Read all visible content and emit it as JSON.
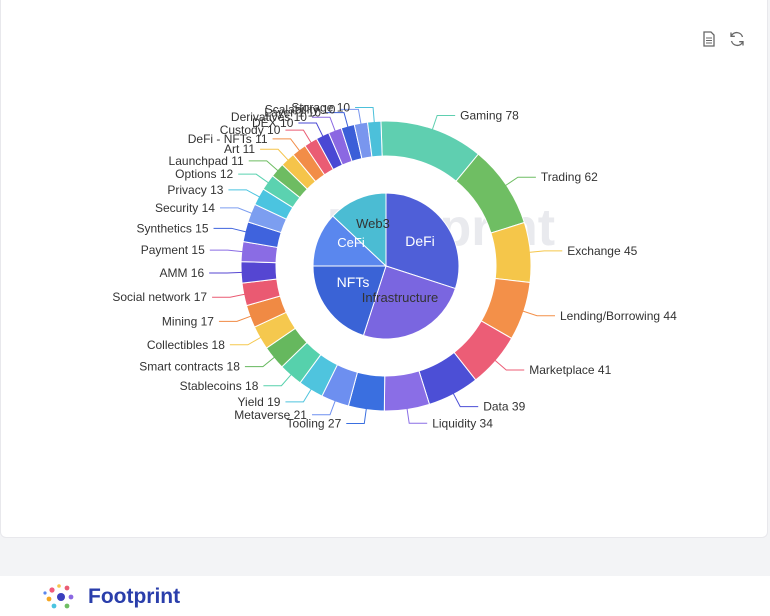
{
  "toolbar": {
    "data_view_icon": "document-icon",
    "refresh_icon": "refresh-icon"
  },
  "brand": {
    "name": "Footprint",
    "logo_icon": "footprint-logo-icon"
  },
  "chart_data": {
    "type": "pie",
    "variant": "nested donut",
    "watermark": "Footprint",
    "inner": [
      {
        "name": "DeFi",
        "value": 30,
        "color": "#4f5fd8"
      },
      {
        "name": "Infrastructure",
        "value": 25,
        "color": "#7a66e0"
      },
      {
        "name": "NFTs",
        "value": 20,
        "color": "#3a63d6"
      },
      {
        "name": "CeFi",
        "value": 12,
        "color": "#5a87ee"
      },
      {
        "name": "Web3",
        "value": 13,
        "color": "#4bbcd3"
      }
    ],
    "outer": [
      {
        "name": "Gaming",
        "value": 78,
        "color": "#5fcfb0"
      },
      {
        "name": "Trading",
        "value": 62,
        "color": "#6fbe63"
      },
      {
        "name": "Exchange",
        "value": 45,
        "color": "#f5c64a"
      },
      {
        "name": "Lending/Borrowing",
        "value": 44,
        "color": "#f39049"
      },
      {
        "name": "Marketplace",
        "value": 41,
        "color": "#ec5d76"
      },
      {
        "name": "Data",
        "value": 39,
        "color": "#4c4fd6"
      },
      {
        "name": "Liquidity",
        "value": 34,
        "color": "#8a6ee6"
      },
      {
        "name": "Tooling",
        "value": 27,
        "color": "#3a6fe0"
      },
      {
        "name": "Metaverse",
        "value": 21,
        "color": "#6d8ff0"
      },
      {
        "name": "Yield",
        "value": 19,
        "color": "#4fc4de"
      },
      {
        "name": "Stablecoins",
        "value": 18,
        "color": "#56d1ac"
      },
      {
        "name": "Smart contracts",
        "value": 18,
        "color": "#66b85e"
      },
      {
        "name": "Collectibles",
        "value": 18,
        "color": "#f5c84e"
      },
      {
        "name": "Mining",
        "value": 17,
        "color": "#f08a44"
      },
      {
        "name": "Social network",
        "value": 17,
        "color": "#ea5a72"
      },
      {
        "name": "AMM",
        "value": 16,
        "color": "#5546d2"
      },
      {
        "name": "Payment",
        "value": 15,
        "color": "#8a6ce4"
      },
      {
        "name": "Synthetics",
        "value": 15,
        "color": "#3f63dd"
      },
      {
        "name": "Security",
        "value": 14,
        "color": "#7c9ef0"
      },
      {
        "name": "Privacy",
        "value": 13,
        "color": "#4bc4e0"
      },
      {
        "name": "Options",
        "value": 12,
        "color": "#5bd2b0"
      },
      {
        "name": "Launchpad",
        "value": 11,
        "color": "#6ebc62"
      },
      {
        "name": "Art",
        "value": 11,
        "color": "#f5c44a"
      },
      {
        "name": "DeFi - NFTs",
        "value": 11,
        "color": "#f28d48"
      },
      {
        "name": "Custody",
        "value": 10,
        "color": "#ea5c74"
      },
      {
        "name": "DEX",
        "value": 10,
        "color": "#4a48d4"
      },
      {
        "name": "Derivatives",
        "value": 10,
        "color": "#8b68e2"
      },
      {
        "name": "Layer 1",
        "value": 10,
        "color": "#3b5fd8"
      },
      {
        "name": "Scalability",
        "value": 10,
        "color": "#7996ee"
      },
      {
        "name": "Storage",
        "value": 10,
        "color": "#4cc0da"
      }
    ]
  }
}
